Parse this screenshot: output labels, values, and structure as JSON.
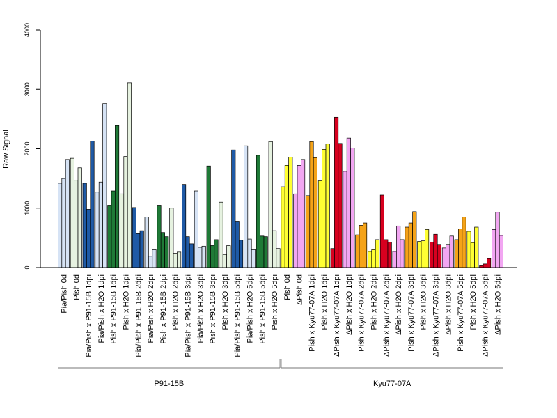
{
  "chart_data": {
    "type": "bar",
    "ylabel": "Raw Signal",
    "ylim": [
      0,
      4000
    ],
    "yticks": [
      0,
      1000,
      2000,
      3000,
      4000
    ],
    "grid": false,
    "colors": {
      "light_blue": "#d6e3f5",
      "dark_blue": "#1f5aa6",
      "light_green": "#e6f2e0",
      "dark_green": "#1f7a37",
      "yellow": "#ffff33",
      "pink": "#f2a6f2",
      "orange": "#f5a318",
      "red": "#d7001f"
    },
    "categories": [
      {
        "label": "Pia/Pish 0d",
        "color": "light_blue",
        "values": [
          1420,
          1500,
          1820
        ]
      },
      {
        "label": "Pish 0d",
        "color": "light_green",
        "values": [
          1840,
          1470,
          1680
        ]
      },
      {
        "label": "Pia/Pish x P91-15B 1dpi",
        "color": "dark_blue",
        "values": [
          1420,
          980,
          2130
        ]
      },
      {
        "label": "Pia/Pish x H2O 1dpi",
        "color": "light_blue",
        "values": [
          1270,
          1440,
          2760
        ]
      },
      {
        "label": "Pish x P91-15B 1dpi",
        "color": "dark_green",
        "values": [
          1050,
          1290,
          2390
        ]
      },
      {
        "label": "Pish x H2O 1dpi",
        "color": "light_green",
        "values": [
          1240,
          1870,
          3110
        ]
      },
      {
        "label": "Pia/Pish x P91-15B 2dpi",
        "color": "dark_blue",
        "values": [
          1010,
          570,
          620
        ]
      },
      {
        "label": "Pia/Pish x H2O 2dpi",
        "color": "light_blue",
        "values": [
          850,
          190,
          300
        ]
      },
      {
        "label": "Pish x P91-15B 2dpi",
        "color": "dark_green",
        "values": [
          1050,
          590,
          520
        ]
      },
      {
        "label": "Pish x H2O 2dpi",
        "color": "light_green",
        "values": [
          1000,
          240,
          260
        ]
      },
      {
        "label": "Pia/Pish x P91-15B 3dpi",
        "color": "dark_blue",
        "values": [
          1400,
          520,
          400
        ]
      },
      {
        "label": "Pia/Pish x H2O 3dpi",
        "color": "light_blue",
        "values": [
          1290,
          340,
          360
        ]
      },
      {
        "label": "Pish x P91-15B 3dpi",
        "color": "dark_green",
        "values": [
          1710,
          370,
          470
        ]
      },
      {
        "label": "Pish x H2O 3dpi",
        "color": "light_green",
        "values": [
          1100,
          220,
          370
        ]
      },
      {
        "label": "Pia/Pish x P91-15B 5dpi",
        "color": "dark_blue",
        "values": [
          1980,
          780,
          460
        ]
      },
      {
        "label": "Pia/Pish x H2O 5dpi",
        "color": "light_blue",
        "values": [
          2050,
          480,
          300
        ]
      },
      {
        "label": "Pish x P91-15B 5dpi",
        "color": "dark_green",
        "values": [
          1890,
          530,
          520
        ]
      },
      {
        "label": "Pish x H2O 5dpi",
        "color": "light_green",
        "values": [
          2120,
          620,
          320
        ]
      },
      {
        "label": "Pish 0d",
        "color": "yellow",
        "values": [
          1360,
          1720,
          1860
        ]
      },
      {
        "label": "ΔPish 0d",
        "color": "pink",
        "values": [
          1240,
          1720,
          1820
        ]
      },
      {
        "label": "Pish x Kyu77-07A 1dpi",
        "color": "orange",
        "values": [
          1210,
          2120,
          1850
        ]
      },
      {
        "label": "Pish x H2O 1dpi",
        "color": "yellow",
        "values": [
          1460,
          1990,
          2080
        ]
      },
      {
        "label": "ΔPish x Kyu77-07A 1dpi",
        "color": "red",
        "values": [
          320,
          2530,
          2090
        ]
      },
      {
        "label": "ΔPish x H2O 1dpi",
        "color": "pink",
        "values": [
          1620,
          2180,
          2010
        ]
      },
      {
        "label": "Pish x Kyu77-07A 2dpi",
        "color": "orange",
        "values": [
          550,
          710,
          750
        ]
      },
      {
        "label": "Pish x H2O 2dpi",
        "color": "yellow",
        "values": [
          270,
          300,
          470
        ]
      },
      {
        "label": "ΔPish x Kyu77-07A 2dpi",
        "color": "red",
        "values": [
          1220,
          470,
          430
        ]
      },
      {
        "label": "ΔPish x H2O 2dpi",
        "color": "pink",
        "values": [
          270,
          700,
          470
        ]
      },
      {
        "label": "Pish x Kyu77-07A 3dpi",
        "color": "orange",
        "values": [
          680,
          750,
          940
        ]
      },
      {
        "label": "Pish x H2O 3dpi",
        "color": "yellow",
        "values": [
          440,
          450,
          640
        ]
      },
      {
        "label": "ΔPish x Kyu77-07A 3dpi",
        "color": "red",
        "values": [
          430,
          560,
          390
        ]
      },
      {
        "label": "ΔPish x H2O 3dpi",
        "color": "pink",
        "values": [
          330,
          390,
          530
        ]
      },
      {
        "label": "Pish x Kyu77-07A 5dpi",
        "color": "orange",
        "values": [
          470,
          650,
          850
        ]
      },
      {
        "label": "Pish x H2O 5dpi",
        "color": "yellow",
        "values": [
          610,
          420,
          680
        ]
      },
      {
        "label": "ΔPish x Kyu77-07A 5dpi",
        "color": "red",
        "values": [
          30,
          60,
          150
        ]
      },
      {
        "label": "ΔPish x H2O 5dpi",
        "color": "pink",
        "values": [
          640,
          930,
          540
        ]
      }
    ],
    "groups": [
      {
        "label": "P91-15B",
        "from": 0,
        "to": 17
      },
      {
        "label": "Kyu77-07A",
        "from": 18,
        "to": 35
      }
    ]
  }
}
